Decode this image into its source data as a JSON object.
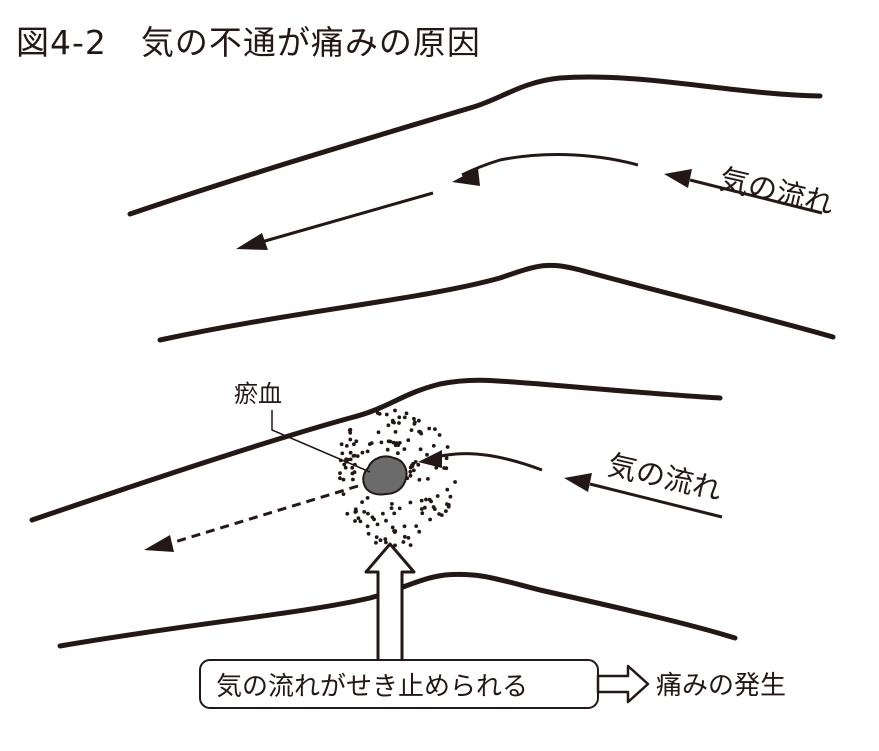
{
  "figure": {
    "title": "図4-2　気の不通が痛みの原因"
  },
  "top_panel": {
    "flow_label": "気の流れ"
  },
  "bottom_panel": {
    "flow_label": "気の流れ",
    "blockage_label": "瘀血",
    "caption_box": "気の流れがせき止められる",
    "result_label": "痛みの発生"
  },
  "colors": {
    "ink": "#231815",
    "blood_clot": "#6b6b6b",
    "background": "#ffffff"
  }
}
